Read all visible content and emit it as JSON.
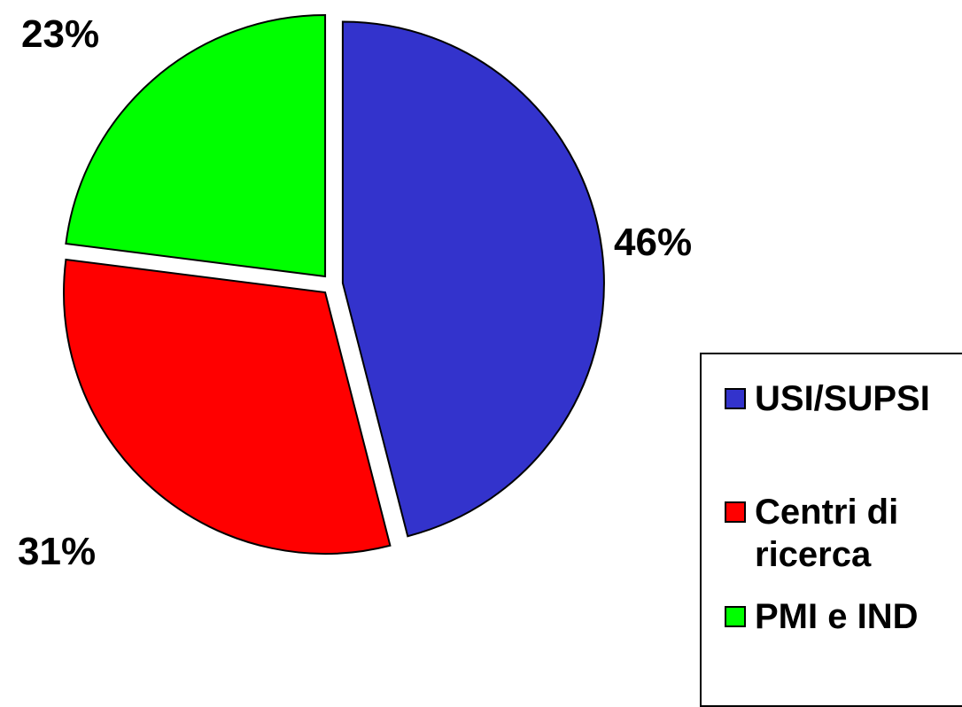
{
  "chart_data": {
    "type": "pie",
    "slices": [
      {
        "label": "USI/SUPSI",
        "value": 46,
        "label_text": "46%",
        "color": "#3333CC"
      },
      {
        "label": "Centri di ricerca",
        "value": 31,
        "label_text": "31%",
        "color": "#FF0000"
      },
      {
        "label": "PMI e IND",
        "value": 23,
        "label_text": "23%",
        "color": "#00FF00"
      }
    ],
    "exploded": true,
    "start_angle": "12 o'clock, clockwise",
    "legend": {
      "placement": "right",
      "items": [
        {
          "label": "USI/SUPSI",
          "color": "#3333CC"
        },
        {
          "label": "Centri di ricerca",
          "color": "#FF0000"
        },
        {
          "label": "PMI e IND",
          "color": "#00FF00"
        }
      ]
    }
  }
}
